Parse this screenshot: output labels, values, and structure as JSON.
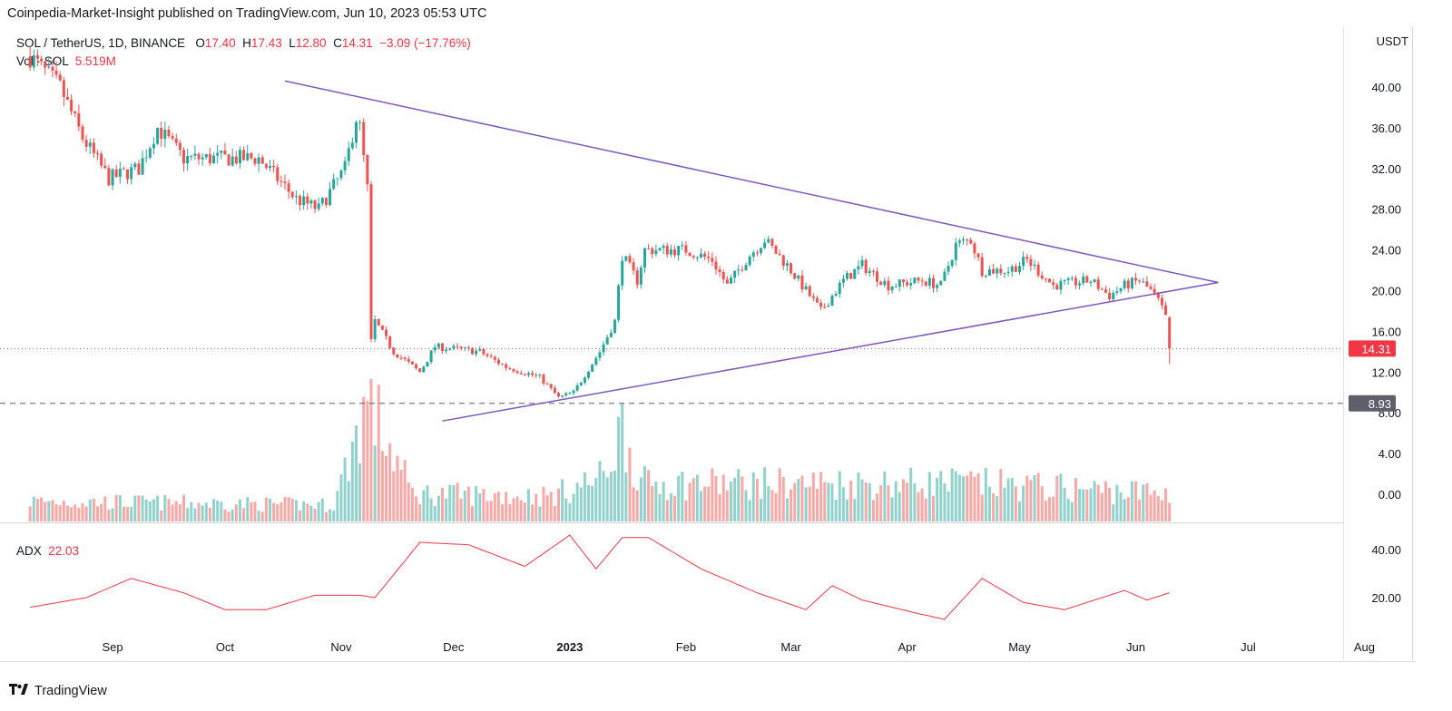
{
  "header": {
    "published": "Coinpedia-Market-Insight published on TradingView.com, Jun 10, 2023 05:53 UTC"
  },
  "legend": {
    "symbol": "SOL / TetherUS, 1D, BINANCE",
    "o_label": "O",
    "o_val": "17.40",
    "h_label": "H",
    "h_val": "17.43",
    "l_label": "L",
    "l_val": "12.80",
    "c_label": "C",
    "c_val": "14.31",
    "change": "−3.09 (−17.76%)",
    "vol_label": "Vol · SOL",
    "vol_val": "5.519M",
    "adx_label": "ADX",
    "adx_val": "22.03"
  },
  "currency": "USDT",
  "footer": {
    "brand": "TradingView"
  },
  "colors": {
    "up": "#26a69a",
    "down": "#ef5350",
    "trendline": "#7e57c2",
    "adx": "#f23645",
    "price_tag": "#f23645",
    "support_tag": "#5d606b"
  },
  "chart_data": {
    "type": "candlestick",
    "symbol": "SOL / TetherUS",
    "interval": "1D",
    "x_ticks": [
      "Sep",
      "Oct",
      "Nov",
      "Dec",
      "2023",
      "Feb",
      "Mar",
      "Apr",
      "May",
      "Jun",
      "Jul",
      "Aug"
    ],
    "y_ticks": [
      "40.00",
      "36.00",
      "32.00",
      "28.00",
      "24.00",
      "20.00",
      "16.00",
      "12.00",
      "8.00",
      "4.00",
      "0.00"
    ],
    "adx_ticks": [
      "40.00",
      "20.00"
    ],
    "last_price": "14.31",
    "support_level": "8.93",
    "price_anchors": [
      {
        "date": "2022-08-10",
        "price": 43
      },
      {
        "date": "2022-08-18",
        "price": 40
      },
      {
        "date": "2022-08-24",
        "price": 35
      },
      {
        "date": "2022-08-31",
        "price": 31
      },
      {
        "date": "2022-09-08",
        "price": 32
      },
      {
        "date": "2022-09-13",
        "price": 36
      },
      {
        "date": "2022-09-20",
        "price": 33
      },
      {
        "date": "2022-09-30",
        "price": 33
      },
      {
        "date": "2022-10-10",
        "price": 33
      },
      {
        "date": "2022-10-20",
        "price": 29
      },
      {
        "date": "2022-10-26",
        "price": 28
      },
      {
        "date": "2022-11-02",
        "price": 32
      },
      {
        "date": "2022-11-05",
        "price": 37
      },
      {
        "date": "2022-11-06",
        "price": 36
      },
      {
        "date": "2022-11-08",
        "price": 30
      },
      {
        "date": "2022-11-09",
        "price": 15
      },
      {
        "date": "2022-11-10",
        "price": 17
      },
      {
        "date": "2022-11-15",
        "price": 14
      },
      {
        "date": "2022-11-22",
        "price": 12
      },
      {
        "date": "2022-11-26",
        "price": 14.5
      },
      {
        "date": "2022-12-08",
        "price": 14
      },
      {
        "date": "2022-12-15",
        "price": 12.5
      },
      {
        "date": "2022-12-24",
        "price": 11.5
      },
      {
        "date": "2022-12-29",
        "price": 9.5
      },
      {
        "date": "2023-01-02",
        "price": 10
      },
      {
        "date": "2023-01-09",
        "price": 14
      },
      {
        "date": "2023-01-13",
        "price": 17
      },
      {
        "date": "2023-01-15",
        "price": 23.5
      },
      {
        "date": "2023-01-19",
        "price": 21
      },
      {
        "date": "2023-01-21",
        "price": 24
      },
      {
        "date": "2023-02-01",
        "price": 24
      },
      {
        "date": "2023-02-08",
        "price": 23
      },
      {
        "date": "2023-02-12",
        "price": 20.5
      },
      {
        "date": "2023-02-18",
        "price": 23.5
      },
      {
        "date": "2023-02-22",
        "price": 25
      },
      {
        "date": "2023-02-28",
        "price": 22.5
      },
      {
        "date": "2023-03-09",
        "price": 18
      },
      {
        "date": "2023-03-15",
        "price": 21
      },
      {
        "date": "2023-03-20",
        "price": 22.5
      },
      {
        "date": "2023-03-27",
        "price": 20.5
      },
      {
        "date": "2023-04-05",
        "price": 21
      },
      {
        "date": "2023-04-10",
        "price": 20.5
      },
      {
        "date": "2023-04-14",
        "price": 24.5
      },
      {
        "date": "2023-04-18",
        "price": 25
      },
      {
        "date": "2023-04-21",
        "price": 22
      },
      {
        "date": "2023-04-28",
        "price": 22
      },
      {
        "date": "2023-05-03",
        "price": 23
      },
      {
        "date": "2023-05-10",
        "price": 20.5
      },
      {
        "date": "2023-05-20",
        "price": 21
      },
      {
        "date": "2023-05-25",
        "price": 19.5
      },
      {
        "date": "2023-05-29",
        "price": 20.5
      },
      {
        "date": "2023-06-02",
        "price": 21
      },
      {
        "date": "2023-06-05",
        "price": 20
      },
      {
        "date": "2023-06-07",
        "price": 19
      },
      {
        "date": "2023-06-09",
        "price": 17.4
      },
      {
        "date": "2023-06-10",
        "price": 14.31
      }
    ],
    "adx_anchors": [
      {
        "date": "2022-08-10",
        "value": 16
      },
      {
        "date": "2022-08-25",
        "value": 20
      },
      {
        "date": "2022-09-06",
        "value": 28
      },
      {
        "date": "2022-09-20",
        "value": 22
      },
      {
        "date": "2022-10-01",
        "value": 15
      },
      {
        "date": "2022-10-12",
        "value": 15
      },
      {
        "date": "2022-10-25",
        "value": 21
      },
      {
        "date": "2022-11-06",
        "value": 21
      },
      {
        "date": "2022-11-10",
        "value": 20
      },
      {
        "date": "2022-11-22",
        "value": 43
      },
      {
        "date": "2022-12-05",
        "value": 42
      },
      {
        "date": "2022-12-20",
        "value": 33
      },
      {
        "date": "2023-01-01",
        "value": 46
      },
      {
        "date": "2023-01-08",
        "value": 32
      },
      {
        "date": "2023-01-15",
        "value": 45
      },
      {
        "date": "2023-01-22",
        "value": 45
      },
      {
        "date": "2023-02-05",
        "value": 32
      },
      {
        "date": "2023-02-20",
        "value": 22
      },
      {
        "date": "2023-03-05",
        "value": 15
      },
      {
        "date": "2023-03-12",
        "value": 25
      },
      {
        "date": "2023-03-20",
        "value": 19
      },
      {
        "date": "2023-04-05",
        "value": 13
      },
      {
        "date": "2023-04-11",
        "value": 11
      },
      {
        "date": "2023-04-21",
        "value": 28
      },
      {
        "date": "2023-05-02",
        "value": 18
      },
      {
        "date": "2023-05-13",
        "value": 15
      },
      {
        "date": "2023-05-29",
        "value": 23
      },
      {
        "date": "2023-06-04",
        "value": 19
      },
      {
        "date": "2023-06-10",
        "value": 22.03
      }
    ],
    "volume_anchors": [
      {
        "date": "2022-08-10",
        "value": 1.6
      },
      {
        "date": "2022-10-30",
        "value": 1.3
      },
      {
        "date": "2022-11-08",
        "value": 9.5
      },
      {
        "date": "2022-11-20",
        "value": 2.2
      },
      {
        "date": "2022-12-27",
        "value": 2.0
      },
      {
        "date": "2023-01-10",
        "value": 3.5
      },
      {
        "date": "2023-01-15",
        "value": 7.5
      },
      {
        "date": "2023-01-20",
        "value": 3.0
      },
      {
        "date": "2023-03-12",
        "value": 3.0
      },
      {
        "date": "2023-04-18",
        "value": 3.0
      },
      {
        "date": "2023-06-10",
        "value": 2.2
      }
    ],
    "trendlines": [
      {
        "name": "upper",
        "from": {
          "date": "2022-10-17",
          "price": 40.6
        },
        "to": {
          "date": "2023-06-23",
          "price": 20.8
        }
      },
      {
        "name": "lower",
        "from": {
          "date": "2022-11-28",
          "price": 7.2
        },
        "to": {
          "date": "2023-06-23",
          "price": 20.8
        }
      }
    ]
  }
}
